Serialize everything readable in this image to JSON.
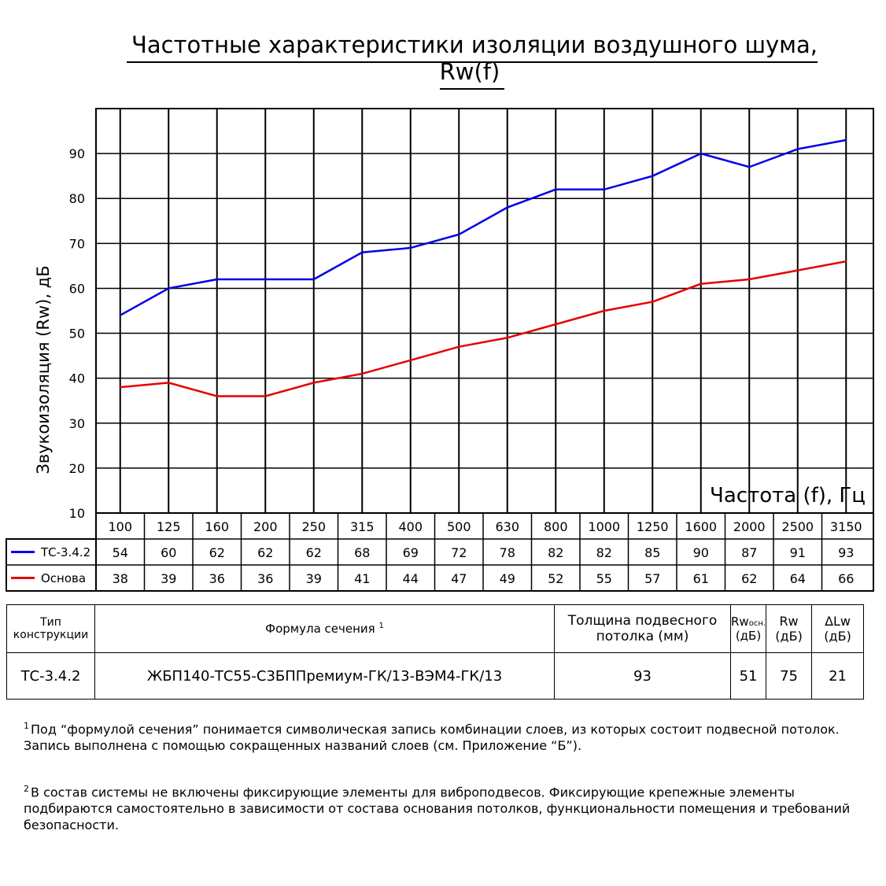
{
  "chart_data": {
    "type": "line",
    "title": "Частотные характеристики изоляции воздушного шума, Rw(f)",
    "ylabel": "Звукоизоляция (Rw), дБ",
    "xlabel": "Частота (f), Гц",
    "ylim": [
      10,
      100
    ],
    "yticks": [
      10,
      20,
      30,
      40,
      50,
      60,
      70,
      80,
      90
    ],
    "grid": true,
    "x": [
      "100",
      "125",
      "160",
      "200",
      "250",
      "315",
      "400",
      "500",
      "630",
      "800",
      "1000",
      "1250",
      "1600",
      "2000",
      "2500",
      "3150"
    ],
    "series": [
      {
        "name": "ТС-3.4.2",
        "color": "#0000e6",
        "values": [
          54,
          60,
          62,
          62,
          62,
          68,
          69,
          72,
          78,
          82,
          82,
          85,
          90,
          87,
          91,
          93
        ]
      },
      {
        "name": "Основа",
        "color": "#e60000",
        "values": [
          38,
          39,
          36,
          36,
          39,
          41,
          44,
          47,
          49,
          52,
          55,
          57,
          61,
          62,
          64,
          66
        ]
      }
    ]
  },
  "spec_table": {
    "col_type": "Тип конструкции",
    "col_formula": "Формула сечения",
    "col_formula_mark": "1",
    "col_thickness": "Толщина подвесного потолка (мм)",
    "col_rw_base_main": "Rw",
    "col_rw_base_sub": "осн.",
    "col_rw_base_unit": "(дБ)",
    "col_rw": "Rw",
    "col_rw_unit": "(дБ)",
    "col_delta": "ΔLw",
    "col_delta_unit": "(дБ)",
    "row": {
      "type": "ТС-3.4.2",
      "formula": "ЖБП140-ТС55-С3БППремиум-ГК/13-ВЭМ4-ГК/13",
      "thickness": "93",
      "rw_base": "51",
      "rw": "75",
      "delta": "21"
    }
  },
  "footnotes": [
    {
      "mark": "1",
      "text": "Под “формулой сечения” понимается символическая запись комбинации слоев, из которых состоит подвесной потолок. Запись выполнена с помощью сокращенных названий слоев (см. Приложение “Б”)."
    },
    {
      "mark": "2",
      "text": "В состав системы не включены фиксирующие элементы для виброподвесов. Фиксирующие крепежные элементы подбираются самостоятельно в зависимости от состава основания потолков, функциональности помещения и требований безопасности."
    }
  ]
}
